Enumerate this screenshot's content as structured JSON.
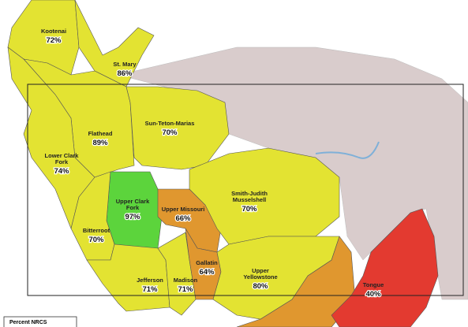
{
  "map": {
    "basins": [
      {
        "lines": [
          "Kootenai"
        ],
        "percent": "72%",
        "color": "#e3e332"
      },
      {
        "lines": [
          "St. Mary"
        ],
        "percent": "86%",
        "color": "#e3e332"
      },
      {
        "lines": [
          "Flathead"
        ],
        "percent": "89%",
        "color": "#e3e332"
      },
      {
        "lines": [
          "Sun-Teton-Marias"
        ],
        "percent": "70%",
        "color": "#e3e332"
      },
      {
        "lines": [
          "Lower Clark",
          "Fork"
        ],
        "percent": "74%",
        "color": "#e3e332"
      },
      {
        "lines": [
          "Upper Clark",
          "Fork"
        ],
        "percent": "97%",
        "color": "#5cd43c"
      },
      {
        "lines": [
          "Upper Missouri"
        ],
        "percent": "66%",
        "color": "#e0972f"
      },
      {
        "lines": [
          "Smith-Judith",
          "Musselshell"
        ],
        "percent": "70%",
        "color": "#e3e332"
      },
      {
        "lines": [
          "Bitterroot"
        ],
        "percent": "70%",
        "color": "#e3e332"
      },
      {
        "lines": [
          "Jefferson"
        ],
        "percent": "71%",
        "color": "#e3e332"
      },
      {
        "lines": [
          "Madison"
        ],
        "percent": "71%",
        "color": "#e3e332"
      },
      {
        "lines": [
          "Gallatin"
        ],
        "percent": "64%",
        "color": "#e0972f"
      },
      {
        "lines": [
          "Upper",
          "Yellowstone"
        ],
        "percent": "80%",
        "color": "#e3e332"
      },
      {
        "lines": [
          "Tongue"
        ],
        "percent": "40%",
        "color": "#e33a30"
      }
    ],
    "legend": {
      "title": "Percent NRCS"
    }
  }
}
